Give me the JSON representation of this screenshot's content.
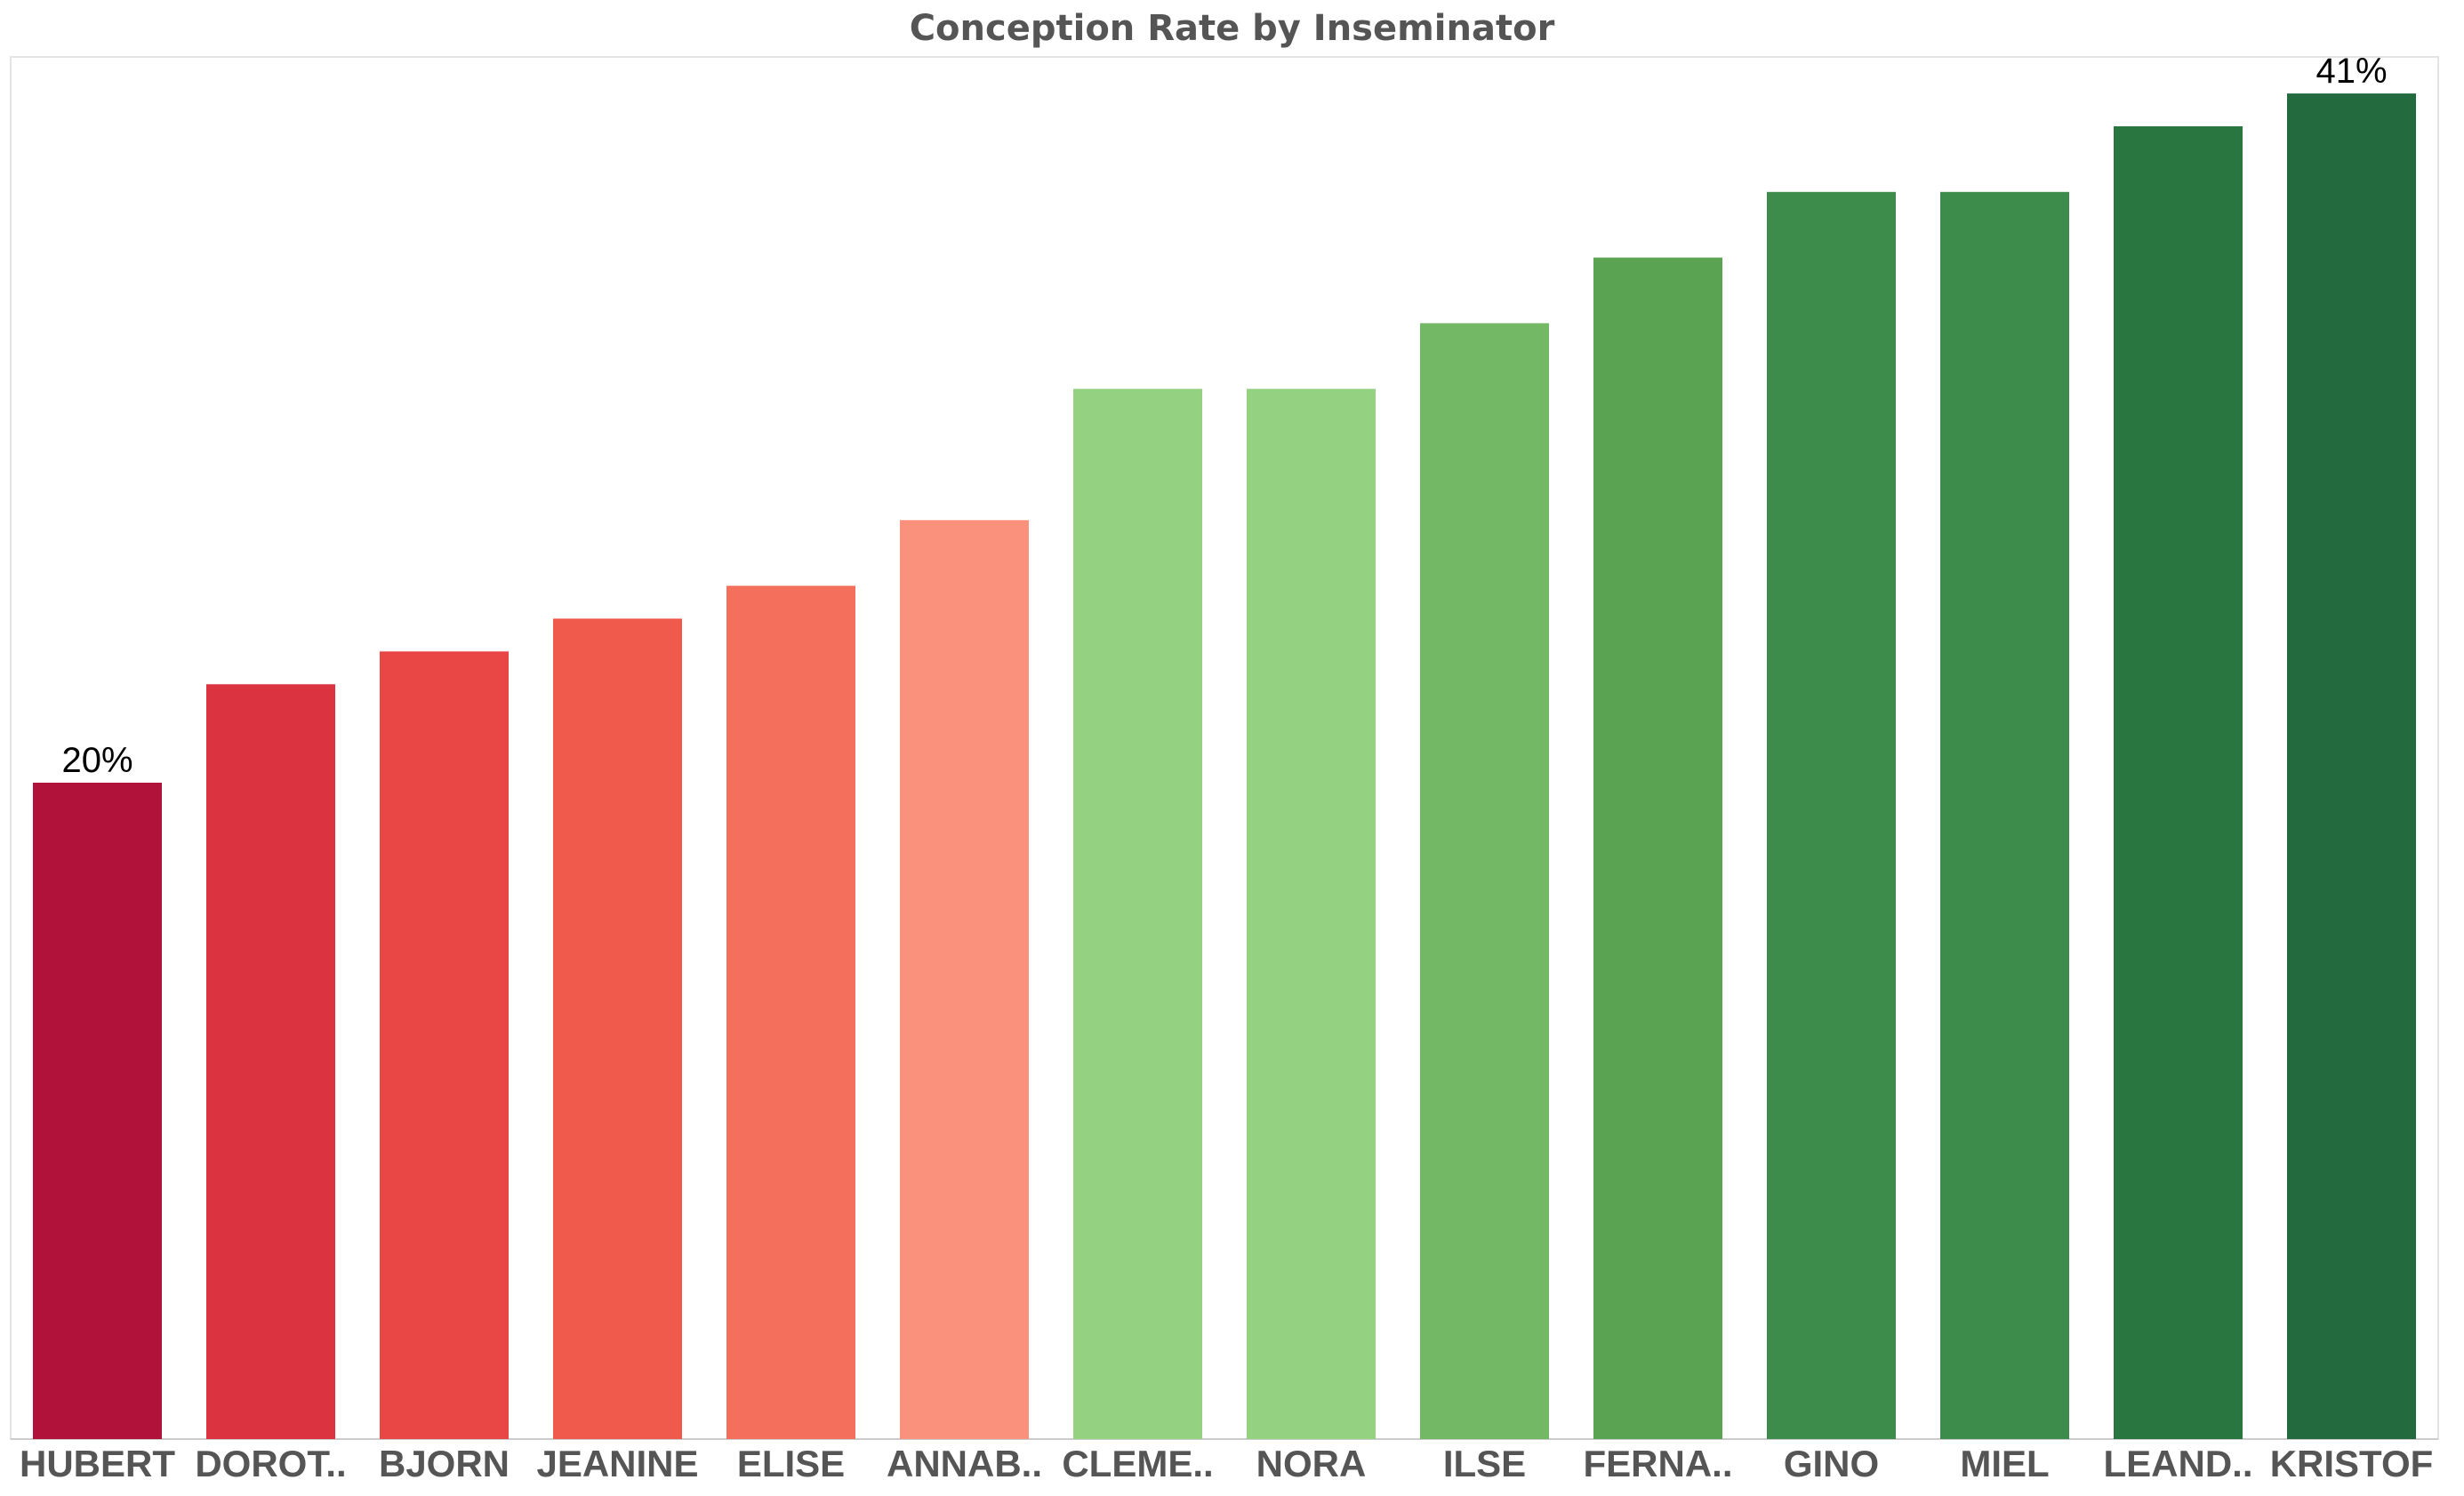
{
  "chart_data": {
    "type": "bar",
    "title": "Conception Rate by Inseminator",
    "xlabel": "",
    "ylabel": "",
    "ylim": [
      0,
      45
    ],
    "grid": false,
    "legend": "none",
    "categories": [
      "HUBERT",
      "DOROT..",
      "BJORN",
      "JEANINE",
      "ELISE",
      "ANNAB..",
      "CLEME..",
      "NORA",
      "ILSE",
      "FERNA..",
      "GINO",
      "MIEL",
      "LEAND..",
      "KRISTOF"
    ],
    "values": [
      20,
      23,
      24,
      25,
      26,
      28,
      32,
      32,
      34,
      36,
      38,
      38,
      40,
      41
    ],
    "value_format": "%",
    "data_labels": [
      {
        "index": 0,
        "text": "20%"
      },
      {
        "index": 13,
        "text": "41%"
      }
    ],
    "colors": [
      "#b01239",
      "#dc3341",
      "#e84745",
      "#f05a4d",
      "#f46f5c",
      "#fa917c",
      "#94d282",
      "#94d282",
      "#73b865",
      "#5aa353",
      "#3d8c4b",
      "#3d8c4b",
      "#2a7640",
      "#236b3e"
    ]
  }
}
